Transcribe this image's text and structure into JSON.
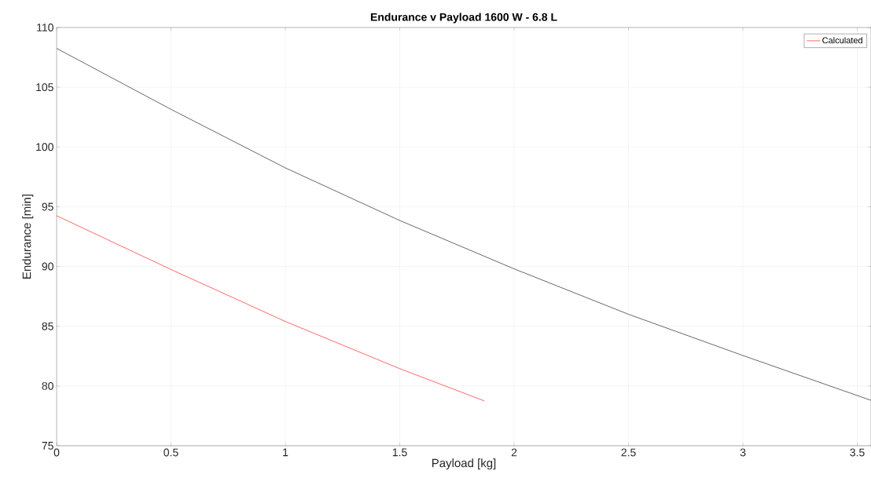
{
  "chart_data": {
    "type": "line",
    "title": "Endurance v Payload 1600 W - 6.8 L",
    "xlabel": "Payload [kg]",
    "ylabel": "Endurance [min]",
    "series": [
      {
        "name": "Calculated",
        "color": "#ff0000",
        "x": [
          0,
          0.5,
          1,
          1.5,
          1.87
        ],
        "values": [
          94.25,
          89.75,
          85.4,
          81.45,
          78.75
        ]
      },
      {
        "color": "#000000",
        "x": [
          0,
          0.5,
          1,
          1.5,
          2,
          2.5,
          3,
          3.56
        ],
        "values": [
          108.25,
          103.15,
          98.25,
          93.85,
          89.8,
          86.0,
          82.55,
          78.8
        ]
      }
    ],
    "xlim": [
      0,
      3.56
    ],
    "ylim": [
      75,
      110
    ],
    "xticks": [
      0,
      0.5,
      1,
      1.5,
      2,
      2.5,
      3,
      3.5
    ],
    "yticks": [
      75,
      80,
      85,
      90,
      95,
      100,
      105,
      110
    ],
    "grid": true,
    "legend": "top right",
    "marker": "none",
    "line_style": "solid"
  }
}
